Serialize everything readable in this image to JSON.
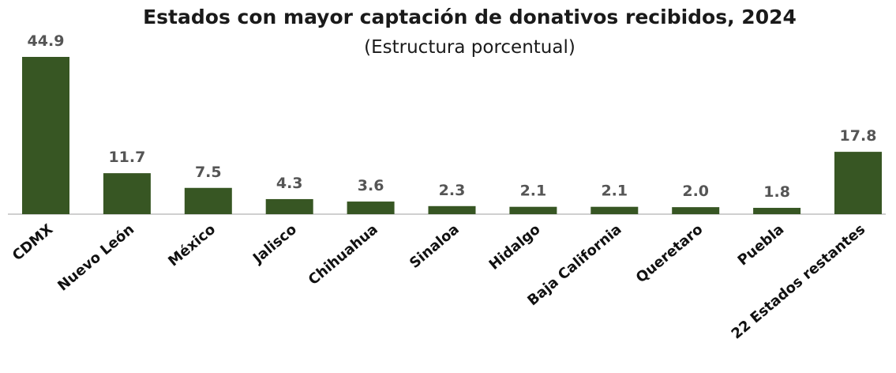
{
  "chart_data": {
    "type": "bar",
    "title": "Estados con mayor captación de donativos recibidos, 2024",
    "subtitle": "(Estructura porcentual)",
    "categories": [
      "CDMX",
      "Nuevo León",
      "México",
      "Jalisco",
      "Chihuahua",
      "Sinaloa",
      "Hidalgo",
      "Baja California",
      "Queretaro",
      "Puebla",
      "22 Estados restantes"
    ],
    "values": [
      44.9,
      11.7,
      7.5,
      4.3,
      3.6,
      2.3,
      2.1,
      2.1,
      2.0,
      1.8,
      17.8
    ],
    "value_labels": [
      "44.9",
      "11.7",
      "7.5",
      "4.3",
      "3.6",
      "2.3",
      "2.1",
      "2.1",
      "2.0",
      "1.8",
      "17.8"
    ],
    "color": "#375623"
  }
}
